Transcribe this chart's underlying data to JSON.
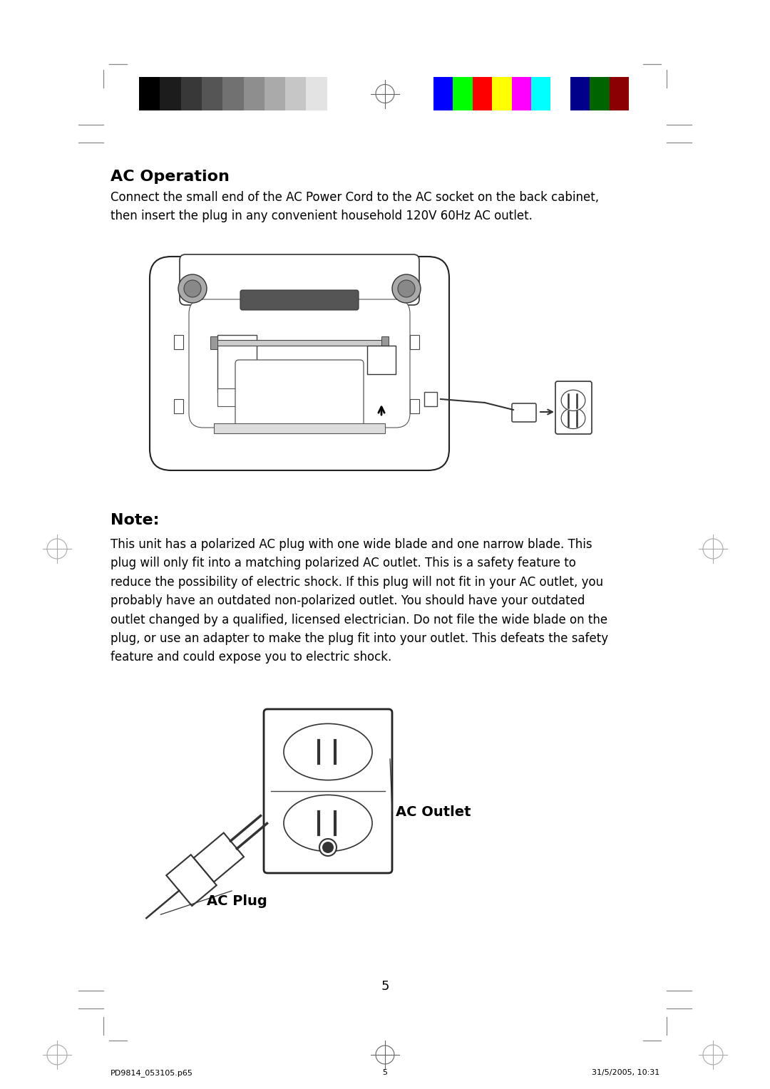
{
  "bg_color": "#ffffff",
  "page_width": 10.8,
  "page_height": 15.28,
  "color_bars_left": [
    "#000000",
    "#1c1c1c",
    "#383838",
    "#555555",
    "#717171",
    "#8e8e8e",
    "#aaaaaa",
    "#c6c6c6",
    "#e3e3e3",
    "#ffffff"
  ],
  "color_bars_right": [
    "#0000ff",
    "#00ff00",
    "#ff0000",
    "#ffff00",
    "#ff00ff",
    "#00ffff",
    "#ffffff",
    "#00008b",
    "#006400",
    "#8b0000"
  ],
  "title": "AC Operation",
  "body_text": "Connect the small end of the AC Power Cord to the AC socket on the back cabinet,\nthen insert the plug in any convenient household 120V 60Hz AC outlet.",
  "note_title": "Note:",
  "note_text": "This unit has a polarized AC plug with one wide blade and one narrow blade. This\nplug will only fit into a matching polarized AC outlet. This is a safety feature to\nreduce the possibility of electric shock. If this plug will not fit in your AC outlet, you\nprobably have an outdated non-polarized outlet. You should have your outdated\noutlet changed by a qualified, licensed electrician. Do not file the wide blade on the\nplug, or use an adapter to make the plug fit into your outlet. This defeats the safety\nfeature and could expose you to electric shock.",
  "ac_outlet_label": "AC Outlet",
  "ac_plug_label": "AC Plug",
  "page_num": "5",
  "footer_left": "PD9814_053105.p65",
  "footer_center": "5",
  "footer_right": "31/5/2005, 10:31"
}
